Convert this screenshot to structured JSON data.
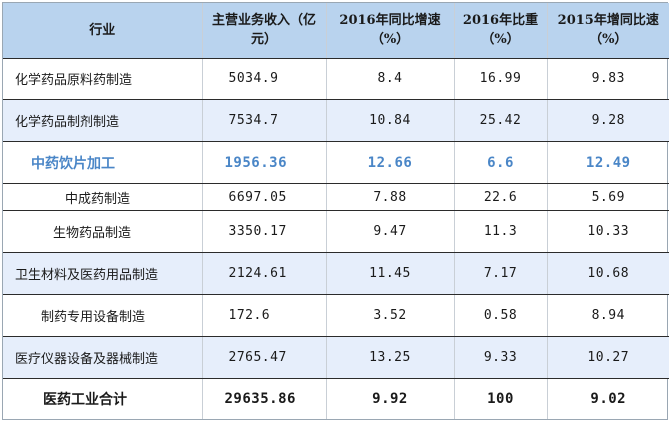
{
  "table": {
    "headers": {
      "industry": "行业",
      "revenue": "主营业务收入（亿元）",
      "growth_2016": "2016年同比增速（%）",
      "share_2016": "2016年比重（%）",
      "growth_2015": "2015年增同比速（%）"
    },
    "rows": [
      {
        "industry": "化学药品原料药制造",
        "revenue": "5034.9",
        "growth_2016": "8.4",
        "share_2016": "16.99",
        "growth_2015": "9.83"
      },
      {
        "industry": "化学药品制剂制造",
        "revenue": "7534.7",
        "growth_2016": "10.84",
        "share_2016": "25.42",
        "growth_2015": "9.28"
      },
      {
        "industry": "中药饮片加工",
        "revenue": "1956.36",
        "growth_2016": "12.66",
        "share_2016": "6.6",
        "growth_2015": "12.49"
      },
      {
        "industry": "中成药制造",
        "revenue": "6697.05",
        "growth_2016": "7.88",
        "share_2016": "22.6",
        "growth_2015": "5.69"
      },
      {
        "industry": "生物药品制造",
        "revenue": "3350.17",
        "growth_2016": "9.47",
        "share_2016": "11.3",
        "growth_2015": "10.33"
      },
      {
        "industry": "卫生材料及医药用品制造",
        "revenue": "2124.61",
        "growth_2016": "11.45",
        "share_2016": "7.17",
        "growth_2015": "10.68"
      },
      {
        "industry": "制药专用设备制造",
        "revenue": "172.6",
        "growth_2016": "3.52",
        "share_2016": "0.58",
        "growth_2015": "8.94"
      },
      {
        "industry": "医疗仪器设备及器械制造",
        "revenue": "2765.47",
        "growth_2016": "13.25",
        "share_2016": "9.33",
        "growth_2015": "10.27"
      }
    ],
    "total": {
      "industry": "医药工业合计",
      "revenue": "29635.86",
      "growth_2016": "9.92",
      "share_2016": "100",
      "growth_2015": "9.02"
    }
  },
  "colors": {
    "header_bg": "#b9d3ee",
    "shaded_row_bg": "#e6eefb",
    "highlight_text": "#4a86c7"
  }
}
